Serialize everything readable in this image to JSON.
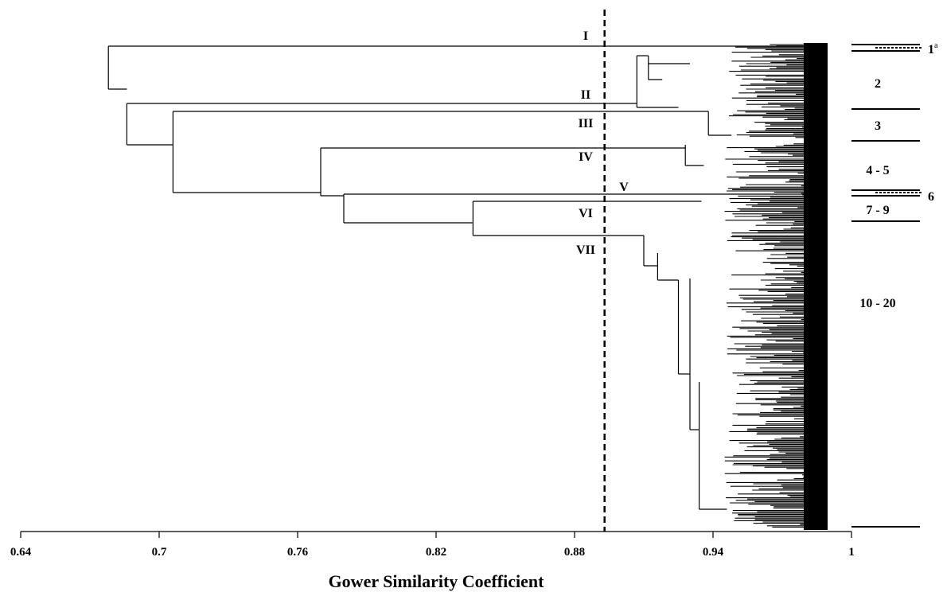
{
  "chart_data": {
    "type": "dendrogram",
    "xlabel": "Gower Similarity Coefficient",
    "xlim": [
      0.64,
      1
    ],
    "x_ticks": [
      "0.64",
      "0.7",
      "0.76",
      "0.82",
      "0.88",
      "0.94",
      "1"
    ],
    "cutoff_similarity": 0.893,
    "groups": [
      {
        "label": "I",
        "merge_similarity": 0.678
      },
      {
        "label": "II",
        "merge_similarity": 0.686
      },
      {
        "label": "III",
        "merge_similarity": 0.706
      },
      {
        "label": "IV",
        "merge_similarity": 0.77
      },
      {
        "label": "V",
        "merge_similarity": 0.78
      },
      {
        "label": "VI",
        "merge_similarity": 0.836
      },
      {
        "label": "VII",
        "merge_similarity": 0.836
      }
    ],
    "top_links": [
      {
        "left": "I",
        "right": "II-VII",
        "similarity": 0.678
      },
      {
        "left": "II",
        "right": "III-VII",
        "similarity": 0.686
      },
      {
        "left": "III",
        "right": "IV-VII",
        "similarity": 0.706
      },
      {
        "left": "IV",
        "right": "V-VII",
        "similarity": 0.77
      },
      {
        "left": "V",
        "right": "VI-VII",
        "similarity": 0.78
      },
      {
        "left": "VI",
        "right": "VII",
        "similarity": 0.836
      },
      {
        "left": "I-sub",
        "right": "II-sub",
        "similarity": 0.907
      }
    ],
    "cluster_labels": [
      {
        "label": "1",
        "superscript": "a"
      },
      {
        "label": "2"
      },
      {
        "label": "3"
      },
      {
        "label": "4 - 5"
      },
      {
        "label": "6"
      },
      {
        "label": "7 - 9"
      },
      {
        "label": "10 - 20"
      }
    ]
  }
}
